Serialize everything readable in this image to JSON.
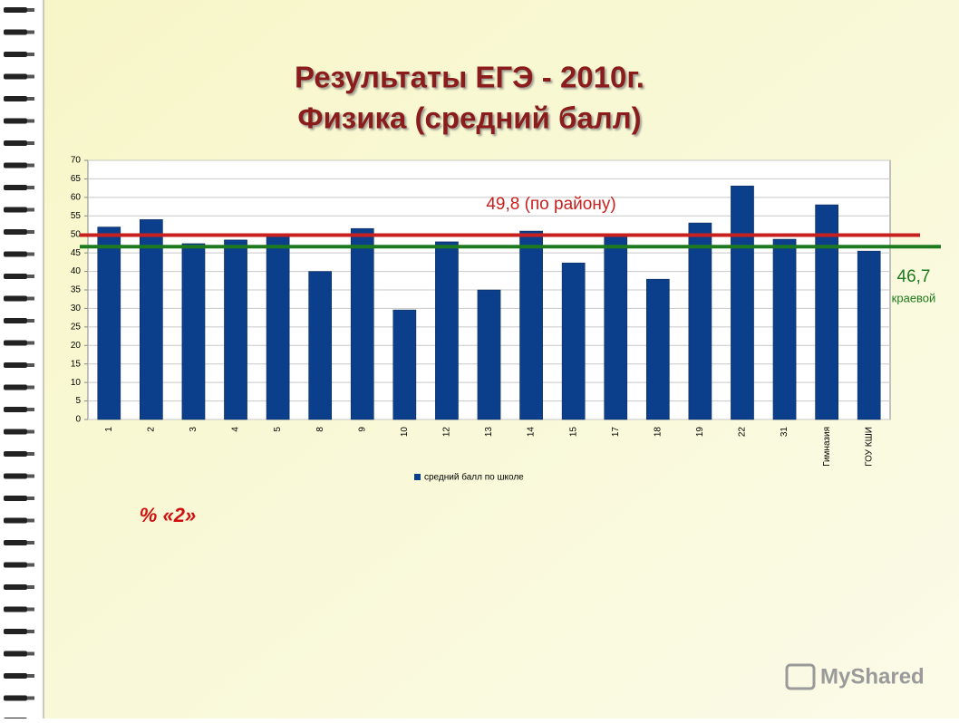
{
  "chart_data": {
    "type": "bar",
    "title": "Результаты ЕГЭ - 2010г.",
    "subtitle": "Физика (средний балл)",
    "categories": [
      "1",
      "2",
      "3",
      "4",
      "5",
      "8",
      "9",
      "10",
      "12",
      "13",
      "14",
      "15",
      "17",
      "18",
      "19",
      "22",
      "31",
      "Гимназия",
      "ГОУ КШИ"
    ],
    "series": [
      {
        "name": "средний балл по школе",
        "color": "#0b3f8c",
        "values": [
          52,
          54,
          47.5,
          48.5,
          50.2,
          40,
          51.6,
          29.6,
          48,
          35,
          50.9,
          42.3,
          49.7,
          37.9,
          53.1,
          63.1,
          48.7,
          58,
          45.5
        ]
      }
    ],
    "ylim": [
      0,
      70
    ],
    "yticks": [
      0,
      5,
      10,
      15,
      20,
      25,
      30,
      35,
      40,
      45,
      50,
      55,
      60,
      65,
      70
    ],
    "grid": true,
    "reference_lines": [
      {
        "value": 49.8,
        "label": "49,8 (по району)",
        "color": "#c8201e"
      },
      {
        "value": 46.7,
        "label": "46,7",
        "note": "краевой",
        "color": "#1e7a1e"
      }
    ],
    "annotation": "%  «2»",
    "watermark": "MyShared"
  }
}
